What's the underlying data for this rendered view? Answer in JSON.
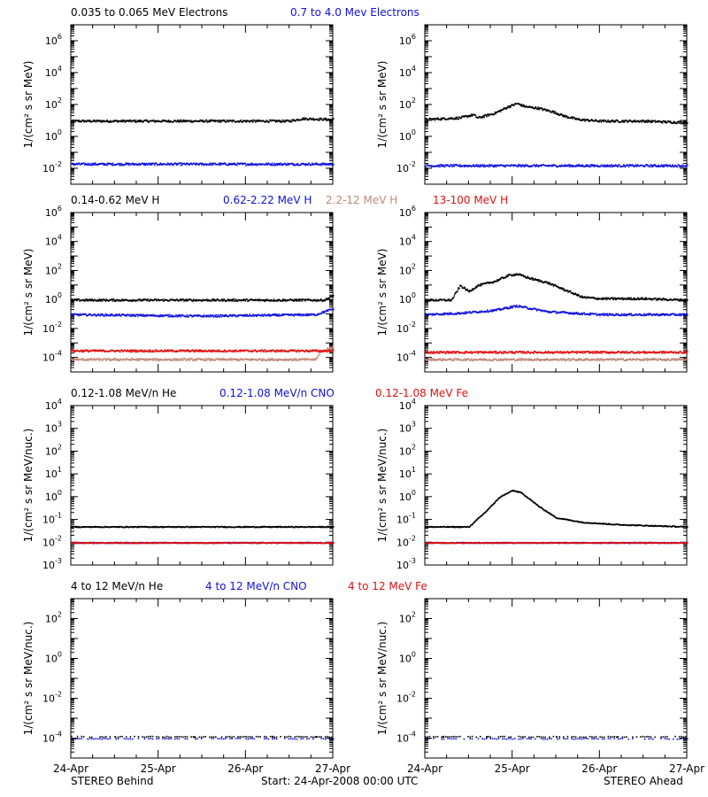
{
  "colors": {
    "black": "#000000",
    "blue": "#1010e0",
    "tan": "#c08878",
    "red": "#e01010"
  },
  "footer": {
    "left": "STEREO Behind",
    "center": "Start: 24-Apr-2008 00:00 UTC",
    "right": "STEREO Ahead"
  },
  "x_tick_labels": [
    "24-Apr",
    "25-Apr",
    "26-Apr",
    "27-Apr"
  ],
  "chart_data": [
    {
      "id": "electrons",
      "type": "scatter",
      "scale": "log",
      "ylabel": "1/(cm² s sr MeV)",
      "ylim_exp": [
        -3,
        7
      ],
      "tick_exps": [
        -2,
        0,
        2,
        4,
        6
      ],
      "legend": [
        {
          "text": "0.035 to 0.065 MeV Electrons",
          "color": "#000000"
        },
        {
          "text": "0.7 to 4.0 Mev Electrons",
          "color": "#1010e0"
        }
      ],
      "panels": {
        "behind": [
          {
            "color": "#000000",
            "points": [
              [
                0,
                1.0
              ],
              [
                0.5,
                1.0
              ],
              [
                1.0,
                1.0
              ],
              [
                1.5,
                1.0
              ],
              [
                2.0,
                1.0
              ],
              [
                2.5,
                1.0
              ],
              [
                2.65,
                1.15
              ],
              [
                3.0,
                1.1
              ]
            ]
          },
          {
            "color": "#1010e0",
            "points": [
              [
                0,
                -1.7
              ],
              [
                1.5,
                -1.7
              ],
              [
                3.0,
                -1.7
              ]
            ]
          }
        ],
        "ahead": [
          {
            "color": "#000000",
            "points": [
              [
                0,
                1.1
              ],
              [
                0.4,
                1.2
              ],
              [
                0.55,
                1.4
              ],
              [
                0.6,
                1.2
              ],
              [
                0.8,
                1.5
              ],
              [
                0.95,
                1.9
              ],
              [
                1.05,
                2.1
              ],
              [
                1.15,
                1.9
              ],
              [
                1.3,
                1.8
              ],
              [
                1.45,
                1.6
              ],
              [
                1.6,
                1.3
              ],
              [
                1.75,
                1.1
              ],
              [
                2.0,
                1.0
              ],
              [
                2.5,
                1.0
              ],
              [
                3.0,
                0.9
              ]
            ]
          },
          {
            "color": "#1010e0",
            "points": [
              [
                0,
                -1.8
              ],
              [
                1.5,
                -1.8
              ],
              [
                3.0,
                -1.8
              ]
            ]
          }
        ]
      }
    },
    {
      "id": "protons",
      "type": "scatter",
      "scale": "log",
      "ylabel": "1/(cm² s sr MeV)",
      "ylim_exp": [
        -5,
        6
      ],
      "tick_exps": [
        -4,
        -2,
        0,
        2,
        4,
        6
      ],
      "legend": [
        {
          "text": "0.14-0.62 MeV H",
          "color": "#000000"
        },
        {
          "text": "0.62-2.22 MeV H",
          "color": "#1010e0"
        },
        {
          "text": "2.2-12 MeV H",
          "color": "#c08878"
        },
        {
          "text": "13-100 MeV H",
          "color": "#e01010"
        }
      ],
      "panels": {
        "behind": [
          {
            "color": "#000000",
            "points": [
              [
                0,
                0.0
              ],
              [
                1.5,
                0.0
              ],
              [
                2.9,
                0.0
              ],
              [
                3.0,
                0.3
              ]
            ]
          },
          {
            "color": "#1010e0",
            "points": [
              [
                0,
                -1.0
              ],
              [
                1.5,
                -1.1
              ],
              [
                2.8,
                -1.0
              ],
              [
                3.0,
                -0.6
              ]
            ]
          },
          {
            "color": "#c08878",
            "points": [
              [
                0,
                -4.1
              ],
              [
                2.8,
                -4.1
              ],
              [
                2.85,
                -3.6
              ],
              [
                3.0,
                -3.2
              ]
            ]
          },
          {
            "color": "#e01010",
            "points": [
              [
                0,
                -3.5
              ],
              [
                1.5,
                -3.5
              ],
              [
                3.0,
                -3.5
              ]
            ]
          }
        ],
        "ahead": [
          {
            "color": "#000000",
            "points": [
              [
                0,
                0.0
              ],
              [
                0.3,
                0.0
              ],
              [
                0.4,
                1.0
              ],
              [
                0.5,
                0.6
              ],
              [
                0.6,
                1.0
              ],
              [
                0.8,
                1.3
              ],
              [
                0.95,
                1.7
              ],
              [
                1.05,
                1.8
              ],
              [
                1.2,
                1.5
              ],
              [
                1.4,
                1.2
              ],
              [
                1.6,
                0.7
              ],
              [
                1.8,
                0.2
              ],
              [
                2.0,
                0.1
              ],
              [
                2.5,
                0.1
              ],
              [
                3.0,
                0.0
              ]
            ]
          },
          {
            "color": "#1010e0",
            "points": [
              [
                0,
                -1.0
              ],
              [
                0.4,
                -0.9
              ],
              [
                0.8,
                -0.7
              ],
              [
                1.05,
                -0.4
              ],
              [
                1.4,
                -0.8
              ],
              [
                2.0,
                -1.0
              ],
              [
                3.0,
                -1.0
              ]
            ]
          },
          {
            "color": "#c08878",
            "points": [
              [
                0,
                -4.1
              ],
              [
                1.5,
                -4.1
              ],
              [
                3.0,
                -4.1
              ]
            ]
          },
          {
            "color": "#e01010",
            "points": [
              [
                0,
                -3.6
              ],
              [
                1.5,
                -3.6
              ],
              [
                3.0,
                -3.6
              ]
            ]
          }
        ]
      }
    },
    {
      "id": "ions-low",
      "type": "scatter",
      "scale": "log",
      "ylabel": "1/(cm² s sr MeV/nuc.)",
      "ylim_exp": [
        -3,
        4
      ],
      "tick_exps": [
        -3,
        -2,
        -1,
        0,
        1,
        2,
        3,
        4
      ],
      "legend": [
        {
          "text": "0.12-1.08 MeV/n He",
          "color": "#000000"
        },
        {
          "text": "0.12-1.08 MeV/n CNO",
          "color": "#1010e0"
        },
        {
          "text": "0.12-1.08 MeV Fe",
          "color": "#e01010"
        }
      ],
      "panels": {
        "behind": [
          {
            "color": "#000000",
            "points": [
              [
                0,
                -1.3
              ],
              [
                1.5,
                -1.3
              ],
              [
                3.0,
                -1.3
              ]
            ]
          },
          {
            "color": "#1010e0",
            "points": [
              [
                0,
                -2.0
              ],
              [
                1.5,
                -2.0
              ],
              [
                3.0,
                -2.0
              ]
            ]
          },
          {
            "color": "#e01010",
            "points": [
              [
                0,
                -2.0
              ],
              [
                3.0,
                -2.0
              ]
            ]
          }
        ],
        "ahead": [
          {
            "color": "#000000",
            "points": [
              [
                0,
                -1.3
              ],
              [
                0.5,
                -1.3
              ],
              [
                0.7,
                -0.6
              ],
              [
                0.85,
                0.0
              ],
              [
                1.0,
                0.3
              ],
              [
                1.1,
                0.2
              ],
              [
                1.3,
                -0.4
              ],
              [
                1.5,
                -0.9
              ],
              [
                1.8,
                -1.1
              ],
              [
                2.2,
                -1.2
              ],
              [
                3.0,
                -1.3
              ]
            ]
          },
          {
            "color": "#1010e0",
            "points": [
              [
                0,
                -2.0
              ],
              [
                1.5,
                -2.0
              ],
              [
                3.0,
                -2.0
              ]
            ]
          },
          {
            "color": "#e01010",
            "points": [
              [
                0,
                -2.0
              ],
              [
                3.0,
                -2.0
              ]
            ]
          }
        ]
      }
    },
    {
      "id": "ions-high",
      "type": "scatter",
      "scale": "log",
      "ylabel": "1/(cm² s sr MeV/nuc.)",
      "ylim_exp": [
        -5,
        3
      ],
      "tick_exps": [
        -4,
        -2,
        0,
        2
      ],
      "legend": [
        {
          "text": "4 to 12 MeV/n He",
          "color": "#000000"
        },
        {
          "text": "4 to 12 MeV/n CNO",
          "color": "#1010e0"
        },
        {
          "text": "4 to 12 MeV Fe",
          "color": "#e01010"
        }
      ],
      "panels": {
        "behind": [
          {
            "color": "#1010e0",
            "points": [
              [
                0,
                -4.0
              ],
              [
                1.5,
                -4.0
              ],
              [
                3.0,
                -4.0
              ]
            ]
          },
          {
            "color": "#000000",
            "points": [
              [
                0.5,
                -3.9
              ],
              [
                1.4,
                -3.9
              ],
              [
                2.3,
                -3.9
              ],
              [
                2.8,
                -3.9
              ]
            ]
          }
        ],
        "ahead": [
          {
            "color": "#1010e0",
            "points": [
              [
                0,
                -4.0
              ],
              [
                1.5,
                -4.0
              ],
              [
                3.0,
                -4.0
              ]
            ]
          },
          {
            "color": "#000000",
            "points": [
              [
                0.2,
                -3.9
              ],
              [
                0.7,
                -3.9
              ],
              [
                1.5,
                -3.9
              ],
              [
                2.2,
                -3.9
              ]
            ]
          }
        ]
      }
    }
  ]
}
